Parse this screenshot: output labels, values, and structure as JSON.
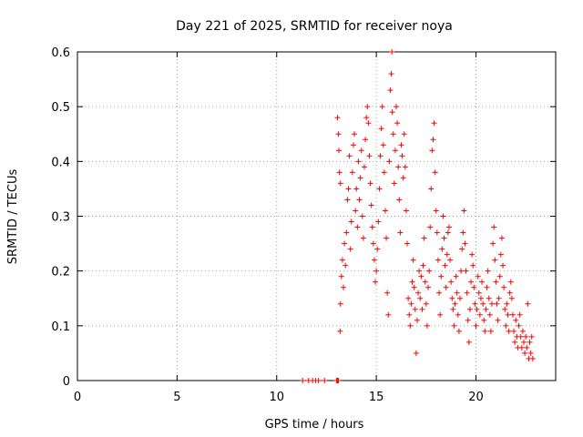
{
  "chart_data": {
    "type": "scatter",
    "title": "Day 221 of 2025, SRMTID for receiver noya",
    "xlabel": "GPS time / hours",
    "ylabel": "SRMTID / TECUs",
    "xlim": [
      0,
      24
    ],
    "ylim": [
      0,
      0.6
    ],
    "xticks": [
      0,
      5,
      10,
      15,
      20
    ],
    "yticks": [
      0,
      0.1,
      0.2,
      0.3,
      0.4,
      0.5,
      0.6
    ],
    "xtick_labels": [
      "0",
      "5",
      "10",
      "15",
      "20"
    ],
    "ytick_labels": [
      "0",
      "0.1",
      "0.2",
      "0.3",
      "0.4",
      "0.5",
      "0.6"
    ],
    "grid": true,
    "marker": "+",
    "colors": {
      "series": "#ff0000",
      "grid": "#a0a0a0",
      "axis": "#000000"
    },
    "series": [
      {
        "name": "noya",
        "points": [
          [
            11.3,
            0.0
          ],
          [
            11.6,
            0.0
          ],
          [
            11.8,
            0.0
          ],
          [
            11.95,
            0.0
          ],
          [
            12.1,
            0.0
          ],
          [
            12.4,
            0.0
          ],
          [
            13.0,
            0.0
          ],
          [
            13.05,
            0.0
          ],
          [
            13.1,
            0.0
          ],
          [
            13.05,
            0.48
          ],
          [
            13.1,
            0.45
          ],
          [
            13.12,
            0.42
          ],
          [
            13.15,
            0.38
          ],
          [
            13.2,
            0.36
          ],
          [
            13.18,
            0.09
          ],
          [
            13.2,
            0.14
          ],
          [
            13.25,
            0.19
          ],
          [
            13.3,
            0.22
          ],
          [
            13.35,
            0.17
          ],
          [
            13.4,
            0.25
          ],
          [
            13.45,
            0.21
          ],
          [
            13.5,
            0.27
          ],
          [
            13.55,
            0.33
          ],
          [
            13.6,
            0.35
          ],
          [
            13.65,
            0.41
          ],
          [
            13.7,
            0.24
          ],
          [
            13.75,
            0.29
          ],
          [
            13.8,
            0.38
          ],
          [
            13.85,
            0.43
          ],
          [
            13.9,
            0.45
          ],
          [
            13.95,
            0.31
          ],
          [
            14.0,
            0.35
          ],
          [
            14.05,
            0.28
          ],
          [
            14.1,
            0.4
          ],
          [
            14.15,
            0.33
          ],
          [
            14.2,
            0.37
          ],
          [
            14.25,
            0.42
          ],
          [
            14.3,
            0.3
          ],
          [
            14.35,
            0.26
          ],
          [
            14.4,
            0.39
          ],
          [
            14.45,
            0.44
          ],
          [
            14.5,
            0.48
          ],
          [
            14.55,
            0.5
          ],
          [
            14.6,
            0.47
          ],
          [
            14.65,
            0.41
          ],
          [
            14.7,
            0.36
          ],
          [
            14.75,
            0.32
          ],
          [
            14.8,
            0.28
          ],
          [
            14.85,
            0.25
          ],
          [
            14.9,
            0.22
          ],
          [
            14.95,
            0.18
          ],
          [
            15.0,
            0.2
          ],
          [
            15.05,
            0.24
          ],
          [
            15.1,
            0.29
          ],
          [
            15.15,
            0.35
          ],
          [
            15.2,
            0.41
          ],
          [
            15.25,
            0.46
          ],
          [
            15.3,
            0.5
          ],
          [
            15.35,
            0.43
          ],
          [
            15.4,
            0.38
          ],
          [
            15.45,
            0.31
          ],
          [
            15.5,
            0.26
          ],
          [
            15.55,
            0.16
          ],
          [
            15.6,
            0.12
          ],
          [
            15.65,
            0.4
          ],
          [
            15.7,
            0.53
          ],
          [
            15.75,
            0.56
          ],
          [
            15.78,
            0.6
          ],
          [
            15.8,
            0.49
          ],
          [
            15.85,
            0.45
          ],
          [
            15.9,
            0.36
          ],
          [
            15.95,
            0.42
          ],
          [
            16.0,
            0.5
          ],
          [
            16.05,
            0.47
          ],
          [
            16.1,
            0.39
          ],
          [
            16.15,
            0.33
          ],
          [
            16.2,
            0.27
          ],
          [
            16.25,
            0.43
          ],
          [
            16.3,
            0.41
          ],
          [
            16.35,
            0.37
          ],
          [
            16.4,
            0.45
          ],
          [
            16.45,
            0.39
          ],
          [
            16.5,
            0.31
          ],
          [
            16.55,
            0.25
          ],
          [
            16.6,
            0.15
          ],
          [
            16.65,
            0.12
          ],
          [
            16.7,
            0.1
          ],
          [
            16.75,
            0.14
          ],
          [
            16.8,
            0.18
          ],
          [
            16.85,
            0.22
          ],
          [
            16.9,
            0.17
          ],
          [
            16.95,
            0.13
          ],
          [
            17.0,
            0.05
          ],
          [
            17.05,
            0.11
          ],
          [
            17.1,
            0.16
          ],
          [
            17.15,
            0.2
          ],
          [
            17.2,
            0.15
          ],
          [
            17.25,
            0.19
          ],
          [
            17.3,
            0.13
          ],
          [
            17.35,
            0.21
          ],
          [
            17.4,
            0.26
          ],
          [
            17.45,
            0.18
          ],
          [
            17.5,
            0.14
          ],
          [
            17.55,
            0.1
          ],
          [
            17.6,
            0.17
          ],
          [
            17.65,
            0.2
          ],
          [
            17.7,
            0.28
          ],
          [
            17.75,
            0.35
          ],
          [
            17.8,
            0.42
          ],
          [
            17.85,
            0.44
          ],
          [
            17.9,
            0.47
          ],
          [
            17.95,
            0.38
          ],
          [
            18.0,
            0.31
          ],
          [
            18.05,
            0.27
          ],
          [
            18.1,
            0.22
          ],
          [
            18.15,
            0.16
          ],
          [
            18.2,
            0.12
          ],
          [
            18.25,
            0.19
          ],
          [
            18.3,
            0.24
          ],
          [
            18.35,
            0.3
          ],
          [
            18.4,
            0.26
          ],
          [
            18.45,
            0.21
          ],
          [
            18.5,
            0.17
          ],
          [
            18.55,
            0.23
          ],
          [
            18.6,
            0.27
          ],
          [
            18.65,
            0.28
          ],
          [
            18.7,
            0.22
          ],
          [
            18.75,
            0.18
          ],
          [
            18.8,
            0.15
          ],
          [
            18.85,
            0.13
          ],
          [
            18.9,
            0.1
          ],
          [
            18.95,
            0.14
          ],
          [
            19.0,
            0.19
          ],
          [
            19.05,
            0.16
          ],
          [
            19.1,
            0.12
          ],
          [
            19.15,
            0.09
          ],
          [
            19.2,
            0.15
          ],
          [
            19.25,
            0.2
          ],
          [
            19.3,
            0.24
          ],
          [
            19.35,
            0.27
          ],
          [
            19.4,
            0.31
          ],
          [
            19.45,
            0.25
          ],
          [
            19.5,
            0.2
          ],
          [
            19.55,
            0.16
          ],
          [
            19.6,
            0.11
          ],
          [
            19.65,
            0.07
          ],
          [
            19.7,
            0.13
          ],
          [
            19.75,
            0.18
          ],
          [
            19.8,
            0.23
          ],
          [
            19.85,
            0.21
          ],
          [
            19.9,
            0.17
          ],
          [
            19.95,
            0.14
          ],
          [
            20.0,
            0.1
          ],
          [
            20.05,
            0.13
          ],
          [
            20.1,
            0.19
          ],
          [
            20.15,
            0.16
          ],
          [
            20.2,
            0.12
          ],
          [
            20.25,
            0.15
          ],
          [
            20.3,
            0.18
          ],
          [
            20.35,
            0.14
          ],
          [
            20.4,
            0.11
          ],
          [
            20.45,
            0.09
          ],
          [
            20.5,
            0.13
          ],
          [
            20.55,
            0.17
          ],
          [
            20.6,
            0.2
          ],
          [
            20.65,
            0.15
          ],
          [
            20.7,
            0.12
          ],
          [
            20.75,
            0.09
          ],
          [
            20.8,
            0.14
          ],
          [
            20.85,
            0.25
          ],
          [
            20.9,
            0.28
          ],
          [
            20.95,
            0.22
          ],
          [
            21.0,
            0.18
          ],
          [
            21.05,
            0.14
          ],
          [
            21.1,
            0.11
          ],
          [
            21.15,
            0.15
          ],
          [
            21.2,
            0.19
          ],
          [
            21.25,
            0.23
          ],
          [
            21.3,
            0.26
          ],
          [
            21.35,
            0.21
          ],
          [
            21.4,
            0.17
          ],
          [
            21.45,
            0.13
          ],
          [
            21.5,
            0.1
          ],
          [
            21.55,
            0.14
          ],
          [
            21.6,
            0.12
          ],
          [
            21.65,
            0.09
          ],
          [
            21.7,
            0.16
          ],
          [
            21.75,
            0.18
          ],
          [
            21.8,
            0.15
          ],
          [
            21.85,
            0.12
          ],
          [
            21.9,
            0.09
          ],
          [
            21.95,
            0.07
          ],
          [
            22.0,
            0.11
          ],
          [
            22.05,
            0.08
          ],
          [
            22.1,
            0.06
          ],
          [
            22.15,
            0.1
          ],
          [
            22.2,
            0.12
          ],
          [
            22.25,
            0.08
          ],
          [
            22.3,
            0.06
          ],
          [
            22.35,
            0.09
          ],
          [
            22.4,
            0.07
          ],
          [
            22.45,
            0.05
          ],
          [
            22.5,
            0.08
          ],
          [
            22.55,
            0.06
          ],
          [
            22.6,
            0.14
          ],
          [
            22.65,
            0.04
          ],
          [
            22.7,
            0.07
          ],
          [
            22.75,
            0.05
          ],
          [
            22.8,
            0.08
          ],
          [
            22.85,
            0.04
          ]
        ]
      }
    ]
  }
}
